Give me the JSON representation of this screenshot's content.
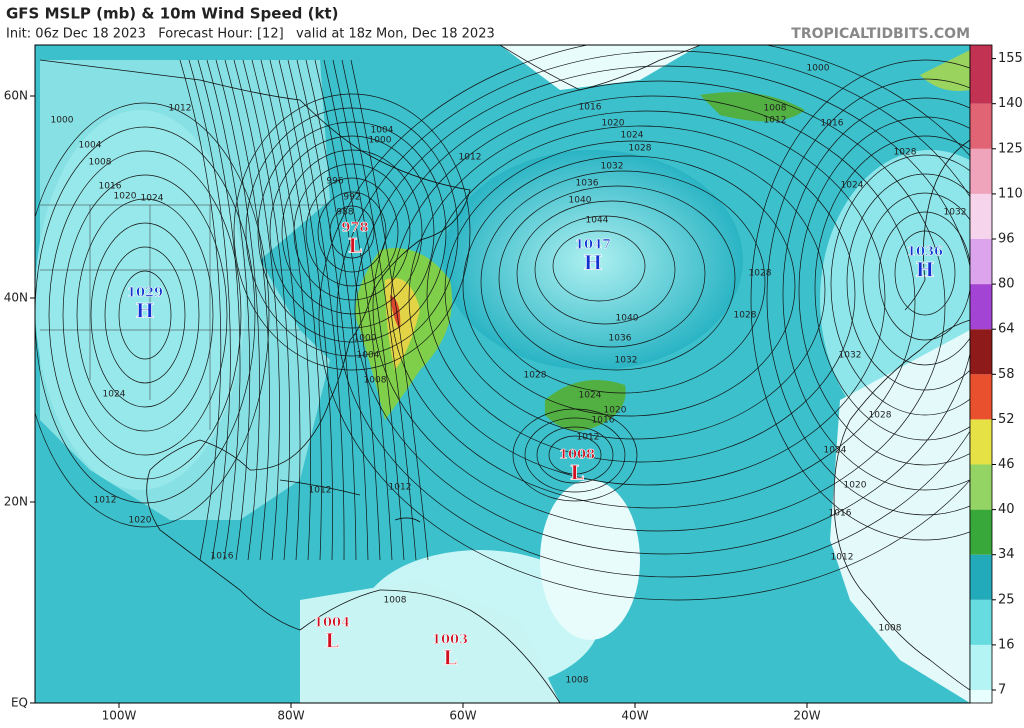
{
  "header": {
    "title": "GFS MSLP (mb) & 10m Wind Speed (kt)",
    "subtitle": "Init: 06z Dec 18 2023   Forecast Hour: [12]   valid at 18z Mon, Dec 18 2023",
    "watermark": "TROPICALTIDBITS.COM"
  },
  "map": {
    "latitudes": [
      "60N",
      "40N",
      "20N",
      "EQ"
    ],
    "longitudes": [
      "100W",
      "80W",
      "60W",
      "40W",
      "20W"
    ],
    "pressure_centers": [
      {
        "value": "978",
        "symbol": "L"
      },
      {
        "value": "1047",
        "symbol": "H"
      },
      {
        "value": "1036",
        "symbol": "H"
      },
      {
        "value": "1029",
        "symbol": "H"
      },
      {
        "value": "1008",
        "symbol": "L"
      },
      {
        "value": "1004",
        "symbol": "L"
      },
      {
        "value": "1003",
        "symbol": "L"
      }
    ],
    "isobar_labels": [
      "1012",
      "1000",
      "1004",
      "1008",
      "1016",
      "1020",
      "1024",
      "996",
      "992",
      "988",
      "1004",
      "1000",
      "1012",
      "1016",
      "1020",
      "1024",
      "1028",
      "1032",
      "1036",
      "1040",
      "1044",
      "1040",
      "1036",
      "1032",
      "1028",
      "1024",
      "1020",
      "1016",
      "1012",
      "1012",
      "1012",
      "1012",
      "1020",
      "1016",
      "1008",
      "1008",
      "1024",
      "1008",
      "1004",
      "1000",
      "1028",
      "1028",
      "1032",
      "1028",
      "1024",
      "1020",
      "1016",
      "1012",
      "1008",
      "1024",
      "1028",
      "1032",
      "1008",
      "1012",
      "1016",
      "1000"
    ]
  },
  "colorbar": {
    "ticks": [
      "7",
      "16",
      "25",
      "34",
      "40",
      "46",
      "52",
      "58",
      "64",
      "80",
      "96",
      "110",
      "125",
      "140",
      "155"
    ],
    "colors": [
      "#b4f4f4",
      "#66dce0",
      "#22aabb",
      "#39a83a",
      "#94d464",
      "#e6e246",
      "#e8502e",
      "#8e1a1a",
      "#a444d4",
      "#dca4ec",
      "#f6d4ec",
      "#f0a4bc",
      "#e06474",
      "#c23252"
    ]
  }
}
